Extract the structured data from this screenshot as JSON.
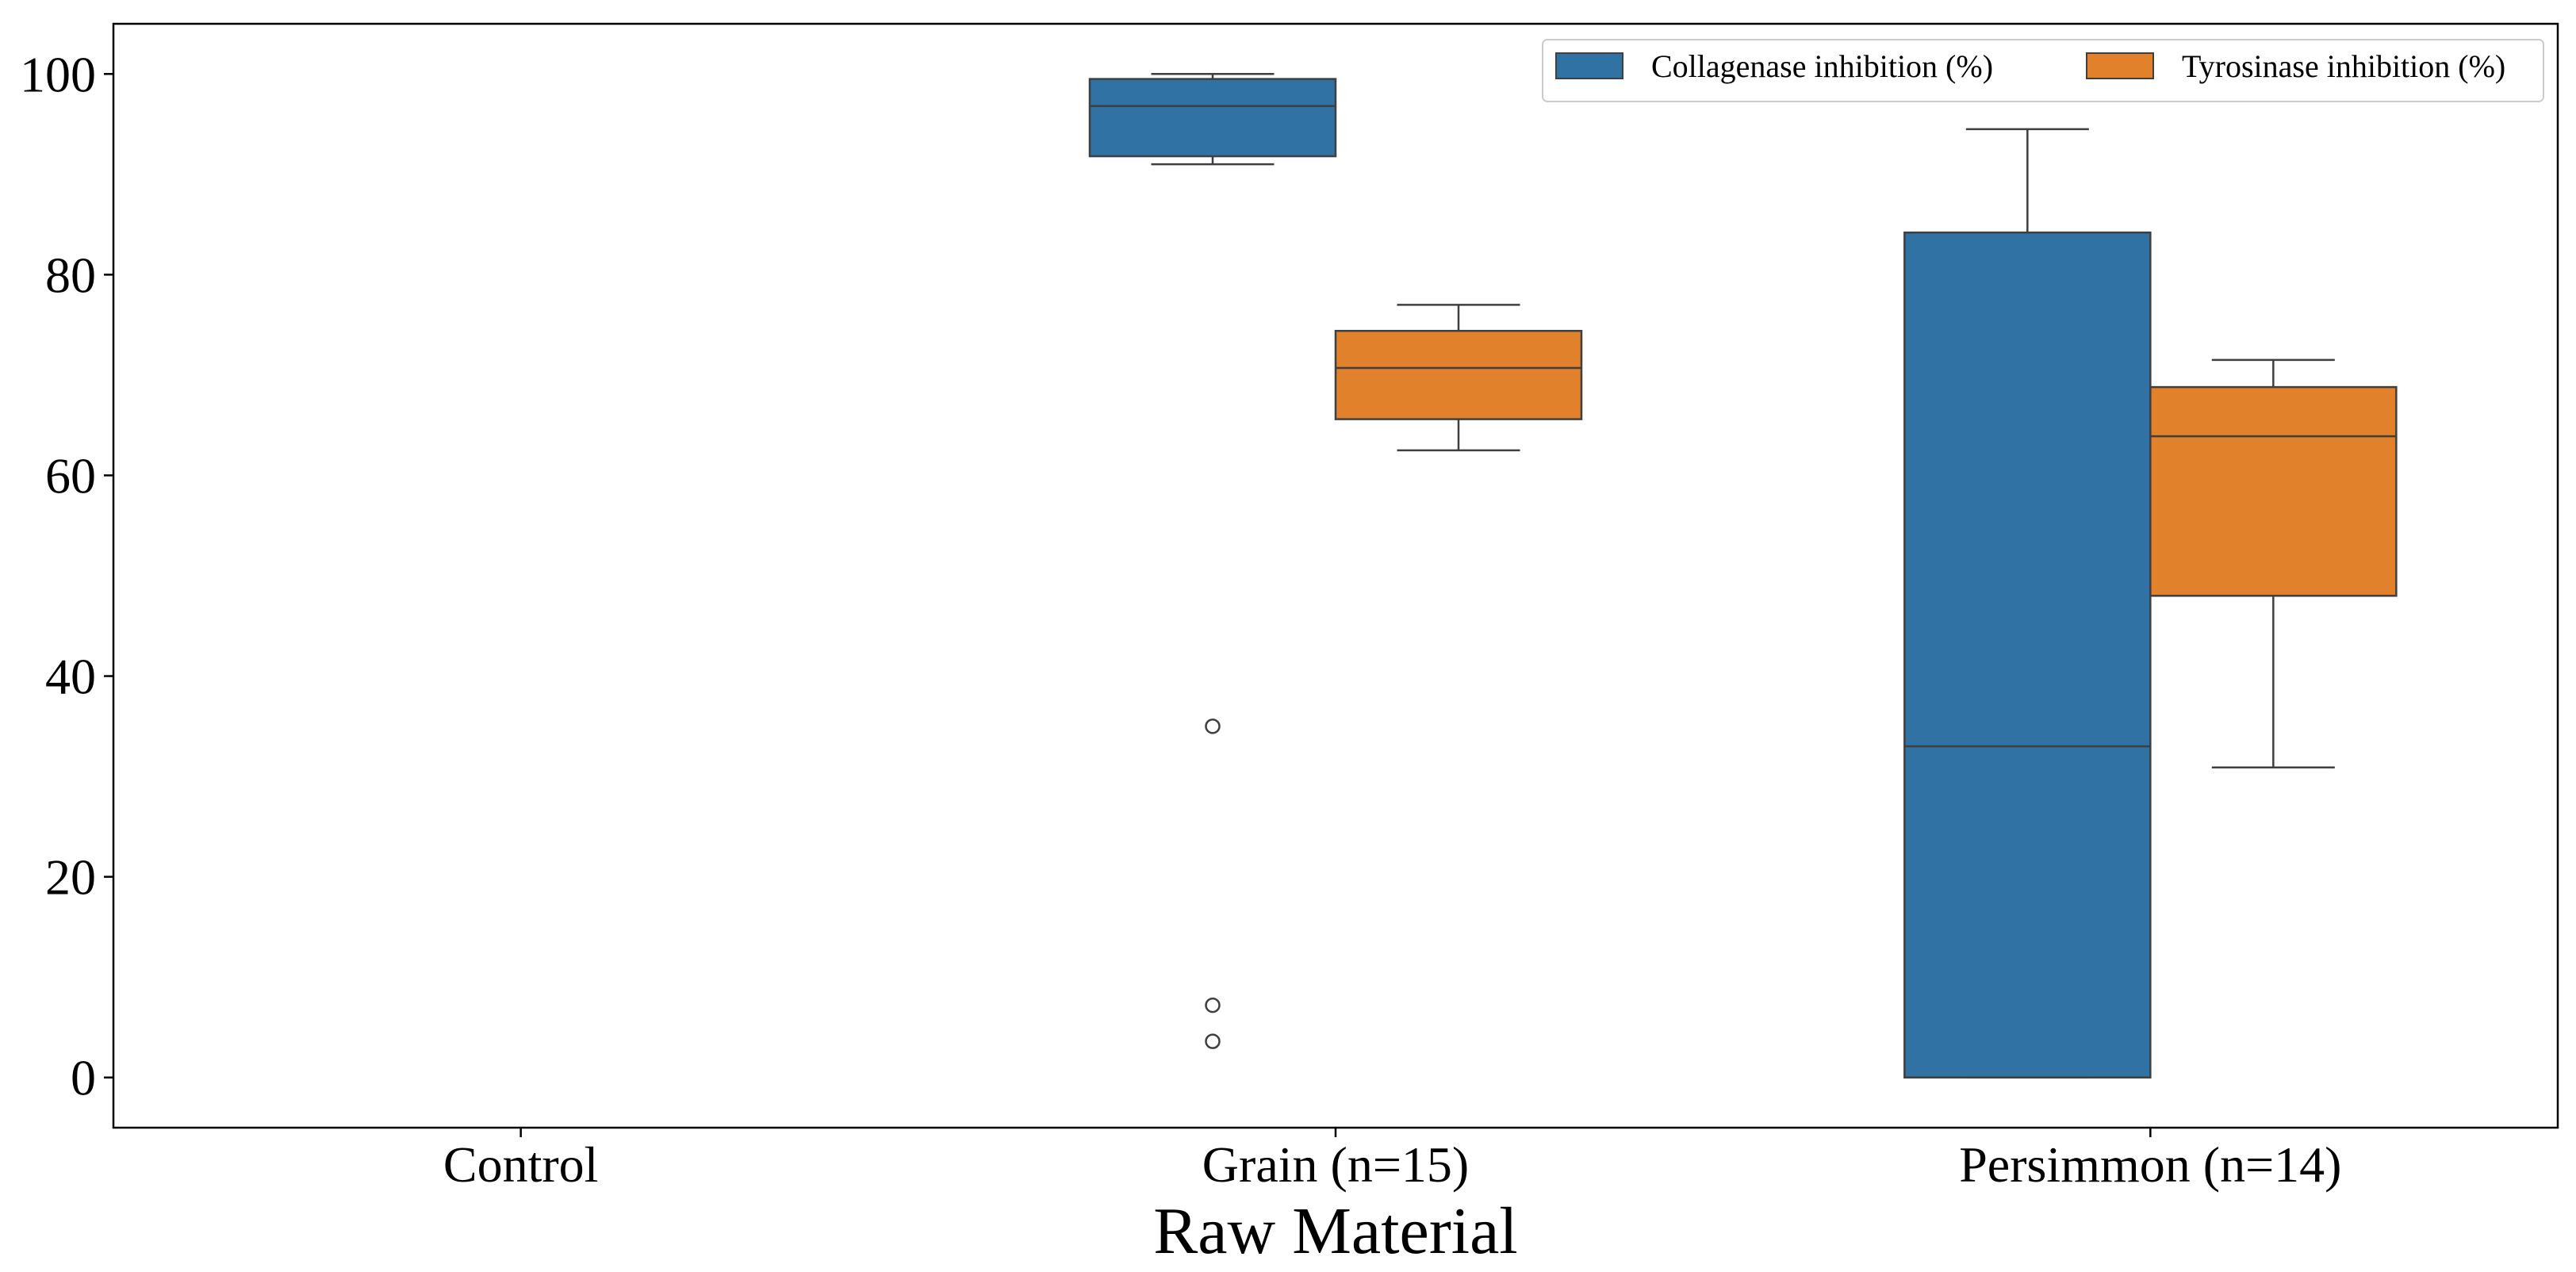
{
  "chart_data": {
    "type": "box",
    "title": "",
    "xlabel": "Raw Material",
    "ylabel": "",
    "categories": [
      "Control",
      "Grain (n=15)",
      "Persimmon (n=14)"
    ],
    "ylim": [
      -5,
      105
    ],
    "yticks": [
      0,
      20,
      40,
      60,
      80,
      100
    ],
    "grid": false,
    "legend_position": "top-right",
    "series": [
      {
        "name": "Collagenase inhibition (%)",
        "color": "#2f72a3",
        "boxes": [
          null,
          {
            "whisker_low": 91.0,
            "q1": 91.8,
            "median": 96.8,
            "q3": 99.5,
            "whisker_high": 100.0,
            "outliers": [
              35.0,
              7.2,
              3.6
            ]
          },
          {
            "whisker_low": 0.0,
            "q1": 0.0,
            "median": 33.0,
            "q3": 84.2,
            "whisker_high": 94.5,
            "outliers": []
          }
        ]
      },
      {
        "name": "Tyrosinase inhibition (%)",
        "color": "#e1812c",
        "boxes": [
          null,
          {
            "whisker_low": 62.5,
            "q1": 65.6,
            "median": 70.7,
            "q3": 74.4,
            "whisker_high": 77.0,
            "outliers": []
          },
          {
            "whisker_low": 30.9,
            "q1": 48.0,
            "median": 63.9,
            "q3": 68.8,
            "whisker_high": 71.5,
            "outliers": []
          }
        ]
      }
    ]
  }
}
